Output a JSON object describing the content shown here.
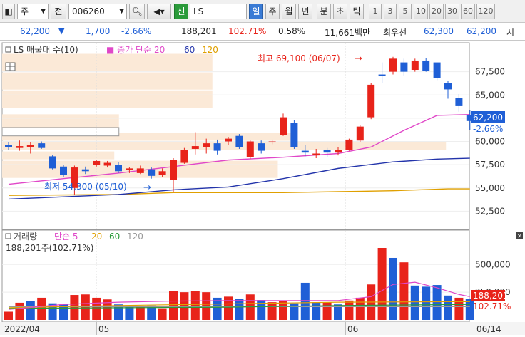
{
  "toolbar": {
    "market_label": "주",
    "jeon_label": "전",
    "code_value": "006260",
    "search_icon_glyph": "Q",
    "shin_label": "신",
    "name_value": "LS",
    "periods": [
      "일",
      "주",
      "월",
      "년",
      "분",
      "초",
      "틱"
    ],
    "active_period": "일",
    "minutes": [
      "1",
      "3",
      "5",
      "10",
      "20",
      "30",
      "60",
      "120"
    ]
  },
  "quote": {
    "price": "62,200",
    "change": "1,700",
    "change_rate": "-2.66%",
    "volume": "188,201",
    "volume_ratio": "102.71%",
    "turnover": "0.58%",
    "amount": "11,661백만",
    "ask_label": "최우선",
    "ask": "62,300",
    "bid": "62,200",
    "si_label": "시"
  },
  "price_panel": {
    "legend_name": "LS 매물대 수(10)",
    "legend_ma": "종가 단순",
    "ma_periods": [
      "20",
      "60",
      "120"
    ],
    "high_label": "최고 69,100 (06/07)",
    "low_label": "최저 54,300 (05/10)",
    "y_ticks": [
      "67,500",
      "65,000",
      "62,500",
      "60,000",
      "57,500",
      "55,000",
      "52,500"
    ],
    "current_price": "62,200",
    "current_rate": "-2.66%"
  },
  "volume_panel": {
    "legend_name": "거래량",
    "legend_ma": "단순",
    "ma_periods": [
      "5",
      "20",
      "60",
      "120"
    ],
    "vol_info": "188,201주(102.71%)",
    "y_ticks": [
      "500,000",
      "250,000"
    ],
    "current_volume": "188,201",
    "current_ratio": "102.71%"
  },
  "x_axis": {
    "labels": [
      "2022/04",
      "05",
      "06",
      "06/14"
    ]
  },
  "chart_data": {
    "type": "candlestick",
    "ylim": [
      51000,
      70000
    ],
    "y_ticks": [
      67500,
      65000,
      62500,
      60000,
      57500,
      55000,
      52500
    ],
    "candles": [
      {
        "o": 59600,
        "h": 59900,
        "l": 59100,
        "c": 59400
      },
      {
        "o": 59300,
        "h": 60100,
        "l": 59000,
        "c": 59500
      },
      {
        "o": 59400,
        "h": 59900,
        "l": 58700,
        "c": 59600
      },
      {
        "o": 59800,
        "h": 60000,
        "l": 59200,
        "c": 59300
      },
      {
        "o": 58400,
        "h": 58500,
        "l": 57000,
        "c": 57100
      },
      {
        "o": 57300,
        "h": 57500,
        "l": 56200,
        "c": 56400
      },
      {
        "o": 55000,
        "h": 57400,
        "l": 54300,
        "c": 57200
      },
      {
        "o": 57000,
        "h": 57300,
        "l": 56500,
        "c": 56800
      },
      {
        "o": 57500,
        "h": 58000,
        "l": 57300,
        "c": 57900
      },
      {
        "o": 57400,
        "h": 57900,
        "l": 57200,
        "c": 57700
      },
      {
        "o": 57500,
        "h": 57800,
        "l": 56600,
        "c": 56800
      },
      {
        "o": 56900,
        "h": 57200,
        "l": 56600,
        "c": 57100
      },
      {
        "o": 56600,
        "h": 57400,
        "l": 56500,
        "c": 57100
      },
      {
        "o": 57000,
        "h": 57200,
        "l": 56000,
        "c": 56300
      },
      {
        "o": 56400,
        "h": 57100,
        "l": 56200,
        "c": 56800
      },
      {
        "o": 55900,
        "h": 58200,
        "l": 54600,
        "c": 58000
      },
      {
        "o": 57700,
        "h": 59300,
        "l": 57600,
        "c": 59100
      },
      {
        "o": 59200,
        "h": 61000,
        "l": 58600,
        "c": 59500
      },
      {
        "o": 59400,
        "h": 60300,
        "l": 58700,
        "c": 59800
      },
      {
        "o": 59800,
        "h": 60200,
        "l": 58600,
        "c": 59000
      },
      {
        "o": 60000,
        "h": 60500,
        "l": 59600,
        "c": 60300
      },
      {
        "o": 60600,
        "h": 60800,
        "l": 59200,
        "c": 59400
      },
      {
        "o": 58300,
        "h": 60100,
        "l": 58100,
        "c": 60000
      },
      {
        "o": 59800,
        "h": 60100,
        "l": 58700,
        "c": 59000
      },
      {
        "o": 59900,
        "h": 60200,
        "l": 59700,
        "c": 60000
      },
      {
        "o": 60700,
        "h": 63000,
        "l": 60600,
        "c": 62600
      },
      {
        "o": 62000,
        "h": 62300,
        "l": 59200,
        "c": 59400
      },
      {
        "o": 59000,
        "h": 59600,
        "l": 58400,
        "c": 58800
      },
      {
        "o": 58500,
        "h": 59200,
        "l": 58200,
        "c": 58700
      },
      {
        "o": 59100,
        "h": 59300,
        "l": 58300,
        "c": 58800
      },
      {
        "o": 58800,
        "h": 59400,
        "l": 58500,
        "c": 59100
      },
      {
        "o": 59100,
        "h": 60300,
        "l": 59000,
        "c": 60200
      },
      {
        "o": 60100,
        "h": 61800,
        "l": 59900,
        "c": 61600
      },
      {
        "o": 62600,
        "h": 66300,
        "l": 62400,
        "c": 66100
      },
      {
        "o": 67200,
        "h": 68500,
        "l": 66300,
        "c": 67100
      },
      {
        "o": 67500,
        "h": 69100,
        "l": 67200,
        "c": 68900
      },
      {
        "o": 68500,
        "h": 68900,
        "l": 67100,
        "c": 67500
      },
      {
        "o": 67700,
        "h": 68900,
        "l": 67500,
        "c": 68700
      },
      {
        "o": 68700,
        "h": 69000,
        "l": 67500,
        "c": 67600
      },
      {
        "o": 68500,
        "h": 68500,
        "l": 66600,
        "c": 66800
      },
      {
        "o": 66300,
        "h": 66500,
        "l": 64600,
        "c": 65600
      },
      {
        "o": 64700,
        "h": 65100,
        "l": 63200,
        "c": 63800
      },
      {
        "o": 62800,
        "h": 63400,
        "l": 61200,
        "c": 62200
      }
    ],
    "ma20": [
      [
        0,
        55400
      ],
      [
        5,
        56000
      ],
      [
        10,
        56600
      ],
      [
        15,
        57300
      ],
      [
        20,
        58000
      ],
      [
        25,
        58300
      ],
      [
        30,
        58700
      ],
      [
        33,
        59400
      ],
      [
        36,
        61200
      ],
      [
        39,
        62800
      ],
      [
        42,
        62900
      ]
    ],
    "ma60": [
      [
        0,
        53800
      ],
      [
        10,
        54300
      ],
      [
        15,
        54800
      ],
      [
        20,
        55100
      ],
      [
        25,
        56000
      ],
      [
        30,
        57100
      ],
      [
        35,
        57800
      ],
      [
        39,
        58100
      ],
      [
        42,
        58200
      ]
    ],
    "ma120": [
      [
        0,
        54200
      ],
      [
        10,
        54300
      ],
      [
        15,
        54500
      ],
      [
        20,
        54500
      ],
      [
        25,
        54500
      ],
      [
        30,
        54600
      ],
      [
        35,
        54700
      ],
      [
        40,
        54900
      ],
      [
        42,
        54900
      ]
    ],
    "volume_ylim": [
      0,
      650000
    ],
    "volumes": [
      74000,
      155000,
      170000,
      200000,
      150000,
      140000,
      225000,
      230000,
      200000,
      185000,
      140000,
      130000,
      120000,
      130000,
      105000,
      260000,
      250000,
      260000,
      250000,
      200000,
      210000,
      190000,
      230000,
      180000,
      160000,
      170000,
      150000,
      335000,
      160000,
      160000,
      140000,
      175000,
      200000,
      320000,
      760000,
      560000,
      520000,
      310000,
      300000,
      315000,
      220000,
      200000,
      188201
    ],
    "volume_up": [
      true,
      true,
      false,
      true,
      false,
      false,
      true,
      true,
      true,
      true,
      false,
      false,
      true,
      false,
      true,
      true,
      true,
      true,
      true,
      false,
      true,
      false,
      true,
      false,
      true,
      true,
      false,
      false,
      false,
      true,
      false,
      true,
      true,
      true,
      true,
      false,
      true,
      false,
      false,
      false,
      false,
      true,
      false
    ],
    "vol_ma": [
      [
        0,
        95000
      ],
      [
        5,
        140000
      ],
      [
        10,
        160000
      ],
      [
        15,
        170000
      ],
      [
        20,
        175000
      ],
      [
        25,
        175000
      ],
      [
        30,
        175000
      ],
      [
        33,
        210000
      ],
      [
        35,
        320000
      ],
      [
        37,
        340000
      ],
      [
        39,
        290000
      ],
      [
        41,
        230000
      ],
      [
        42,
        210000
      ]
    ],
    "vol_ma2": [
      [
        0,
        110000
      ],
      [
        10,
        130000
      ],
      [
        20,
        145000
      ],
      [
        30,
        160000
      ],
      [
        42,
        165000
      ]
    ],
    "vol_ma3": [
      [
        0,
        105000
      ],
      [
        20,
        115000
      ],
      [
        30,
        130000
      ],
      [
        42,
        140000
      ]
    ],
    "vol_ma4": [
      [
        0,
        120000
      ],
      [
        42,
        120000
      ]
    ]
  },
  "colors": {
    "up": "#e8231a",
    "down": "#1f5fd6",
    "ma20": "#e047c8",
    "ma60": "#2233aa",
    "ma120": "#e0a000"
  }
}
